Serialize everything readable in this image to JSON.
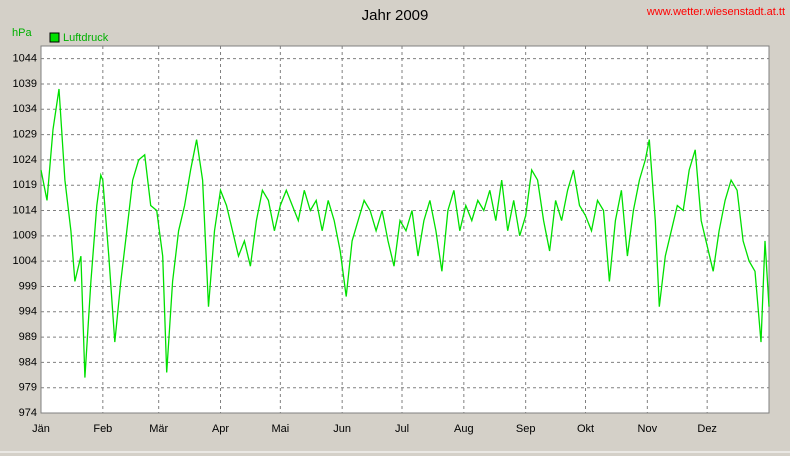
{
  "chart_data": {
    "type": "line",
    "title": "Jahr 2009",
    "source": "www.wetter.wiesenstadt.at.tt",
    "y_label": "hPa",
    "x": [
      0,
      3,
      6,
      9,
      12,
      15,
      17,
      20,
      22,
      25,
      28,
      30,
      31,
      34,
      37,
      40,
      43,
      46,
      49,
      52,
      55,
      58,
      61,
      63,
      66,
      69,
      72,
      75,
      78,
      81,
      84,
      87,
      90,
      93,
      96,
      99,
      102,
      105,
      108,
      111,
      114,
      117,
      120,
      123,
      126,
      129,
      132,
      135,
      138,
      141,
      144,
      147,
      150,
      153,
      156,
      159,
      162,
      165,
      168,
      171,
      174,
      177,
      180,
      183,
      186,
      189,
      192,
      195,
      198,
      201,
      204,
      207,
      210,
      213,
      216,
      219,
      222,
      225,
      228,
      231,
      234,
      237,
      240,
      243,
      246,
      249,
      252,
      255,
      258,
      261,
      264,
      267,
      270,
      273,
      276,
      279,
      282,
      285,
      288,
      291,
      294,
      297,
      300,
      303,
      305,
      308,
      310,
      313,
      316,
      319,
      322,
      325,
      328,
      331,
      334,
      337,
      340,
      343,
      346,
      349,
      352,
      355,
      358,
      361,
      363,
      365
    ],
    "series": [
      {
        "name": "Luftdruck",
        "color": "#00e000",
        "values": [
          1022,
          1016,
          1030,
          1038,
          1020,
          1010,
          1000,
          1005,
          981,
          1000,
          1015,
          1021,
          1020,
          1005,
          988,
          1000,
          1010,
          1020,
          1024,
          1025,
          1015,
          1014,
          1005,
          982,
          1000,
          1010,
          1015,
          1022,
          1028,
          1020,
          995,
          1010,
          1018,
          1015,
          1010,
          1005,
          1008,
          1003,
          1012,
          1018,
          1016,
          1010,
          1015,
          1018,
          1015,
          1012,
          1018,
          1014,
          1016,
          1010,
          1016,
          1012,
          1006,
          997,
          1008,
          1012,
          1016,
          1014,
          1010,
          1014,
          1008,
          1003,
          1012,
          1010,
          1014,
          1005,
          1012,
          1016,
          1010,
          1002,
          1014,
          1018,
          1010,
          1015,
          1012,
          1016,
          1014,
          1018,
          1012,
          1020,
          1010,
          1016,
          1009,
          1013,
          1022,
          1020,
          1012,
          1006,
          1016,
          1012,
          1018,
          1022,
          1015,
          1013,
          1010,
          1016,
          1014,
          1000,
          1012,
          1018,
          1005,
          1014,
          1020,
          1024,
          1028,
          1012,
          995,
          1005,
          1010,
          1015,
          1014,
          1022,
          1026,
          1012,
          1007,
          1002,
          1010,
          1016,
          1020,
          1018,
          1008,
          1004,
          1002,
          988,
          1008,
          995
        ]
      }
    ],
    "xlim": [
      0,
      365
    ],
    "xticks": [
      {
        "value": 0,
        "label": "Jän"
      },
      {
        "value": 31,
        "label": "Feb"
      },
      {
        "value": 59,
        "label": "Mär"
      },
      {
        "value": 90,
        "label": "Apr"
      },
      {
        "value": 120,
        "label": "Mai"
      },
      {
        "value": 151,
        "label": "Jun"
      },
      {
        "value": 181,
        "label": "Jul"
      },
      {
        "value": 212,
        "label": "Aug"
      },
      {
        "value": 243,
        "label": "Sep"
      },
      {
        "value": 273,
        "label": "Okt"
      },
      {
        "value": 304,
        "label": "Nov"
      },
      {
        "value": 334,
        "label": "Dez"
      }
    ],
    "ylim": [
      974,
      1046.5
    ],
    "yticks": [
      974,
      979,
      984,
      989,
      994,
      999,
      1004,
      1009,
      1014,
      1019,
      1024,
      1029,
      1034,
      1039,
      1044
    ],
    "grid": true
  }
}
